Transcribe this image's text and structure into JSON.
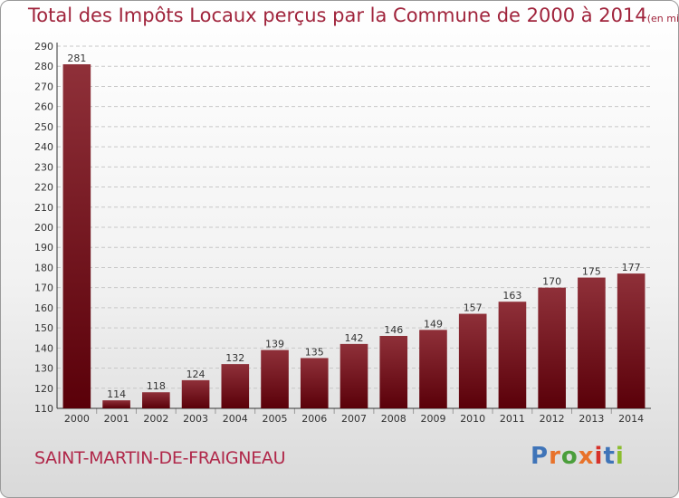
{
  "header": {
    "title": "Total des Impôts Locaux perçus par la Commune de 2000 à 2014",
    "unit": "(en milliers d'€)"
  },
  "footer": {
    "commune": "SAINT-MARTIN-DE-FRAIGNEAU",
    "logo": "Proxiti",
    "logo_colors": [
      "#3f74b8",
      "#e8722a",
      "#4b9e3b",
      "#e8722a",
      "#d6312a",
      "#3f74b8",
      "#8bbd2f"
    ]
  },
  "colors": {
    "bar_top": "#8f3039",
    "bar_bottom": "#5a0009",
    "title": "#a0243c",
    "grid": "#c8c8c8"
  },
  "chart_data": {
    "type": "bar",
    "title": "Total des Impôts Locaux perçus par la Commune de 2000 à 2014",
    "xlabel": "",
    "ylabel": "",
    "categories": [
      "2000",
      "2001",
      "2002",
      "2003",
      "2004",
      "2005",
      "2006",
      "2007",
      "2008",
      "2009",
      "2010",
      "2011",
      "2012",
      "2013",
      "2014"
    ],
    "values": [
      281,
      114,
      118,
      124,
      132,
      139,
      135,
      142,
      146,
      149,
      157,
      163,
      170,
      175,
      177
    ],
    "ylim": [
      110,
      290
    ],
    "yticks": [
      110,
      120,
      130,
      140,
      150,
      160,
      170,
      180,
      190,
      200,
      210,
      220,
      230,
      240,
      250,
      260,
      270,
      280,
      290
    ],
    "grid": true,
    "legend": "none"
  }
}
